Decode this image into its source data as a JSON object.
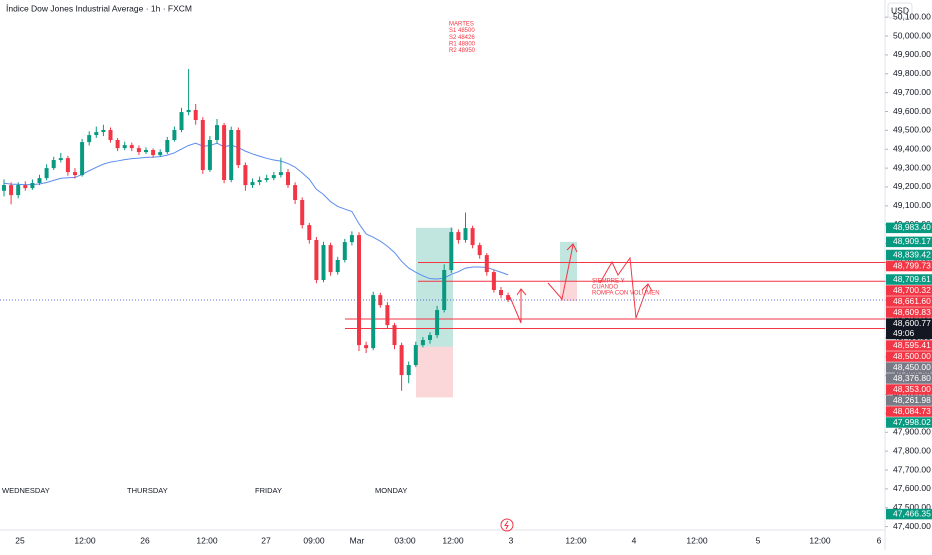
{
  "chart_data": {
    "type": "candlestick",
    "title": "Índice Dow Jones Industrial Average · 1h · FXCM",
    "currency": "USD",
    "up_color": "#089981",
    "down_color": "#f23645",
    "open": [
      49180,
      49210,
      49157,
      49210,
      49194,
      49221,
      49247,
      49300,
      49343,
      49353,
      49279,
      49263,
      49438,
      49475,
      49491,
      49502,
      49449,
      49406,
      49422,
      49406,
      49385,
      49396,
      49369,
      49385,
      49449,
      49502,
      49597,
      49608,
      49555,
      49290,
      49449,
      49528,
      49237,
      49502,
      49316,
      49210,
      49226,
      49237,
      49247,
      49263,
      49279,
      49210,
      49131,
      48998,
      48919,
      48707,
      48892,
      48749,
      48813,
      48908,
      48945,
      48362,
      48346,
      48627,
      48574,
      48468,
      48362,
      48203,
      48256,
      48362,
      48389,
      48415,
      48548,
      48760,
      48961,
      48919,
      48982,
      48892,
      48839,
      48749,
      48654,
      48627
    ],
    "high": [
      49240,
      49225,
      49225,
      49230,
      49240,
      49265,
      49320,
      49360,
      49380,
      49365,
      49300,
      49455,
      49495,
      49520,
      49530,
      49515,
      49460,
      49440,
      49435,
      49420,
      49410,
      49405,
      49400,
      49465,
      49520,
      49620,
      49825,
      49640,
      49570,
      49470,
      49560,
      49540,
      49520,
      49515,
      49330,
      49245,
      49255,
      49265,
      49280,
      49355,
      49295,
      49225,
      49145,
      49010,
      48935,
      48910,
      48905,
      48830,
      48925,
      48965,
      48960,
      48380,
      48645,
      48640,
      48590,
      48480,
      48375,
      48275,
      48380,
      48405,
      48430,
      48570,
      48790,
      48985,
      48975,
      49065,
      48995,
      48905,
      48850,
      48760,
      48670,
      48640
    ],
    "low": [
      49150,
      49108,
      49140,
      49180,
      49185,
      49210,
      49235,
      49290,
      49330,
      49260,
      49245,
      49255,
      49420,
      49460,
      49470,
      49435,
      49390,
      49395,
      49390,
      49370,
      49375,
      49355,
      49360,
      49375,
      49440,
      49490,
      49580,
      49530,
      49270,
      49280,
      49430,
      49220,
      49225,
      49300,
      49180,
      49195,
      49210,
      49225,
      49235,
      49250,
      49195,
      49110,
      48980,
      48900,
      48690,
      48695,
      48730,
      48735,
      48800,
      48890,
      48330,
      48320,
      48335,
      48560,
      48450,
      48340,
      48120,
      48160,
      48245,
      48350,
      48370,
      48400,
      48535,
      48745,
      48900,
      48905,
      48875,
      48820,
      48730,
      48640,
      48610,
      48590
    ],
    "close": [
      49210,
      49157,
      49210,
      49194,
      49221,
      49247,
      49300,
      49343,
      49353,
      49279,
      49263,
      49438,
      49475,
      49491,
      49502,
      49449,
      49406,
      49422,
      49406,
      49385,
      49396,
      49369,
      49385,
      49449,
      49502,
      49597,
      49608,
      49555,
      49290,
      49449,
      49528,
      49237,
      49502,
      49316,
      49210,
      49226,
      49237,
      49247,
      49263,
      49279,
      49210,
      49131,
      48998,
      48919,
      48707,
      48892,
      48749,
      48813,
      48908,
      48945,
      48362,
      48346,
      48627,
      48574,
      48468,
      48362,
      48203,
      48256,
      48362,
      48389,
      48415,
      48548,
      48760,
      48961,
      48919,
      48982,
      48892,
      48839,
      48749,
      48654,
      48627,
      48601
    ],
    "ema": {
      "color": "#5b8def",
      "values": [
        49220,
        49215,
        49214,
        49212,
        49213,
        49216,
        49224,
        49235,
        49246,
        49249,
        49250,
        49267,
        49286,
        49304,
        49321,
        49332,
        49338,
        49345,
        49350,
        49353,
        49357,
        49358,
        49361,
        49369,
        49381,
        49401,
        49420,
        49432,
        49416,
        49419,
        49432,
        49413,
        49422,
        49409,
        49390,
        49375,
        49363,
        49352,
        49343,
        49337,
        49324,
        49305,
        49275,
        49241,
        49188,
        49160,
        49122,
        49097,
        49083,
        49070,
        49005,
        48951,
        48934,
        48913,
        48886,
        48853,
        48806,
        48770,
        48748,
        48729,
        48714,
        48712,
        48717,
        48737,
        48751,
        48770,
        48776,
        48776,
        48773,
        48761,
        48748,
        48734
      ]
    },
    "ylim": [
      47382,
      50191
    ],
    "yticks": [
      {
        "value": 47400,
        "label": "47,400.00"
      },
      {
        "value": 47500,
        "label": "47,500.00"
      },
      {
        "value": 47600,
        "label": "47,600.00"
      },
      {
        "value": 47700,
        "label": "47,700.00"
      },
      {
        "value": 47800,
        "label": "47,800.00"
      },
      {
        "value": 47900,
        "label": "47,900.00"
      },
      {
        "value": 48000,
        "label": "48,000.00"
      },
      {
        "value": 48100,
        "label": "48,100.00"
      },
      {
        "value": 48200,
        "label": "48,200.00"
      },
      {
        "value": 48300,
        "label": "48,300.00"
      },
      {
        "value": 48400,
        "label": "48,400.00"
      },
      {
        "value": 48500,
        "label": "48,500.00"
      },
      {
        "value": 48600,
        "label": "48,600.00"
      },
      {
        "value": 48700,
        "label": "48,700.00"
      },
      {
        "value": 48800,
        "label": "48,800.00"
      },
      {
        "value": 48900,
        "label": "48,900.00"
      },
      {
        "value": 49000,
        "label": "49,000.00"
      },
      {
        "value": 49100,
        "label": "49,100.00"
      },
      {
        "value": 49200,
        "label": "49,200.00"
      },
      {
        "value": 49300,
        "label": "49,300.00"
      },
      {
        "value": 49400,
        "label": "49,400.00"
      },
      {
        "value": 49500,
        "label": "49,500.00"
      },
      {
        "value": 49600,
        "label": "49,600.00"
      },
      {
        "value": 49700,
        "label": "49,700.00"
      },
      {
        "value": 49800,
        "label": "49,800.00"
      },
      {
        "value": 49900,
        "label": "49,900.00"
      },
      {
        "value": 50000,
        "label": "50,000.00"
      },
      {
        "value": 50100,
        "label": "50,100.00"
      }
    ],
    "x_labels": [
      "25",
      "12:00",
      "26",
      "12:00",
      "27",
      "09:00",
      "Mar",
      "03:00",
      "12:00",
      "3",
      "12:00",
      "4",
      "12:00",
      "5",
      "12:00",
      "6"
    ],
    "day_labels": [
      "WEDNESDAY",
      "THURSDAY",
      "FRIDAY",
      "MONDAY"
    ],
    "price_labels": [
      {
        "value": 48983.4,
        "label": "48,983.40",
        "color": "#089981"
      },
      {
        "value": 48909.17,
        "label": "48,909.17",
        "color": "#089981"
      },
      {
        "value": 48839.42,
        "label": "48,839.42",
        "color": "#089981"
      },
      {
        "value": 48799.73,
        "label": "48,799.73",
        "color": "#f23645"
      },
      {
        "value": 48709.61,
        "label": "48,709.61",
        "color": "#089981"
      },
      {
        "value": 48700.32,
        "label": "48,700.32",
        "color": "#f23645"
      },
      {
        "value": 48661.6,
        "label": "48,661.60",
        "color": "#f23645"
      },
      {
        "value": 48609.83,
        "label": "48,609.83",
        "color": "#f23645"
      },
      {
        "value": 48600.77,
        "label": "48,600.77",
        "color": "#131722"
      },
      {
        "value": 48595.41,
        "label": "48,595.41",
        "color": "#f23645"
      },
      {
        "value": 48500.0,
        "label": "48,500.00",
        "color": "#f23645"
      },
      {
        "value": 48450.0,
        "label": "48,450.00",
        "color": "#787b86"
      },
      {
        "value": 48376.8,
        "label": "48,376.80",
        "color": "#787b86"
      },
      {
        "value": 48353.0,
        "label": "48,353.00",
        "color": "#f23645"
      },
      {
        "value": 48261.98,
        "label": "48,261.98",
        "color": "#787b86"
      },
      {
        "value": 48084.73,
        "label": "48,084.73",
        "color": "#f23645"
      },
      {
        "value": 47998.02,
        "label": "47,998.02",
        "color": "#089981"
      },
      {
        "value": 47466.35,
        "label": "47,466.35",
        "color": "#089981"
      }
    ],
    "countdown": "49:06",
    "levels": [
      {
        "value": 48799.73,
        "color": "#f23645"
      },
      {
        "value": 48700.32,
        "color": "#f23645"
      },
      {
        "value": 48500.0,
        "color": "#f23645"
      },
      {
        "value": 48450.0,
        "color": "#f23645"
      }
    ],
    "positions": [
      {
        "target": 48983.4,
        "entry": 48353.0,
        "stop": 48084.73
      },
      {
        "target": 48909.17,
        "entry": 48700.32,
        "stop": 48595.41
      }
    ],
    "note_levels": [
      "MARTES",
      "S1 48500",
      "S2 48426",
      "R1 48800",
      "R2 48950"
    ],
    "note_volume": [
      "SIEMPRE Y",
      "CUANDO",
      "ROMPA CON VOLUMEN"
    ]
  }
}
